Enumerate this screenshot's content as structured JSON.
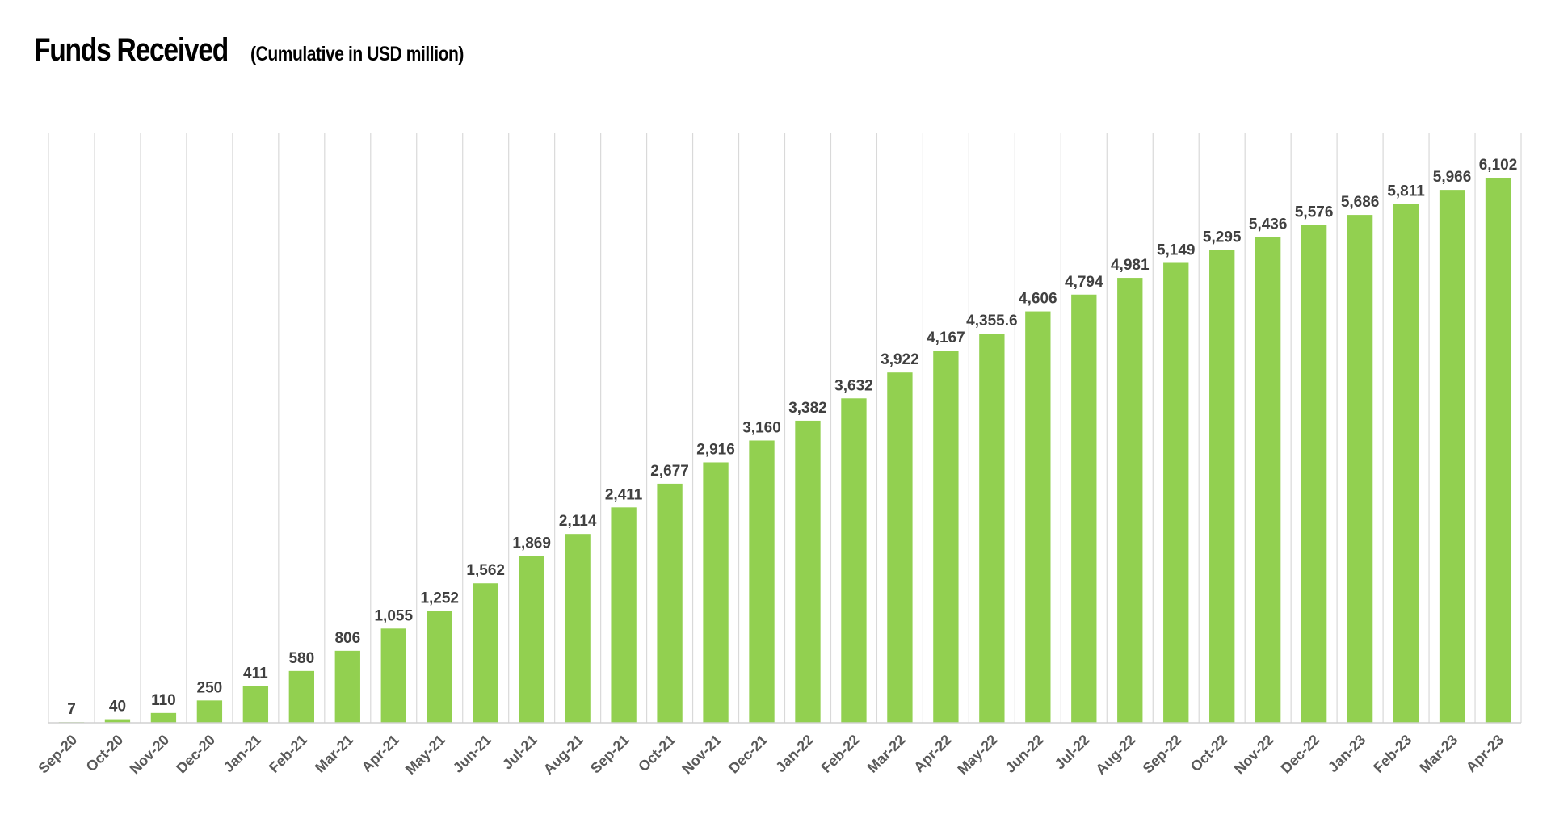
{
  "chart_data": {
    "type": "bar",
    "title": "Funds Received",
    "subtitle": "(Cumulative in USD million)",
    "xlabel": "",
    "ylabel": "",
    "ylim": [
      0,
      6600
    ],
    "grid": "vertical",
    "bar_color": "#92D050",
    "categories": [
      "Sep-20",
      "Oct-20",
      "Nov-20",
      "Dec-20",
      "Jan-21",
      "Feb-21",
      "Mar-21",
      "Apr-21",
      "May-21",
      "Jun-21",
      "Jul-21",
      "Aug-21",
      "Sep-21",
      "Oct-21",
      "Nov-21",
      "Dec-21",
      "Jan-22",
      "Feb-22",
      "Mar-22",
      "Apr-22",
      "May-22",
      "Jun-22",
      "Jul-22",
      "Aug-22",
      "Sep-22",
      "Oct-22",
      "Nov-22",
      "Dec-22",
      "Jan-23",
      "Feb-23",
      "Mar-23",
      "Apr-23"
    ],
    "values": [
      7,
      40,
      110,
      250,
      411,
      580,
      806,
      1055,
      1252,
      1562,
      1869,
      2114,
      2411,
      2677,
      2916,
      3160,
      3382,
      3632,
      3922,
      4167,
      4355.6,
      4606,
      4794,
      4981,
      5149,
      5295,
      5436,
      5576,
      5686,
      5811,
      5966,
      6102
    ],
    "data_labels": [
      "7",
      "40",
      "110",
      "250",
      "411",
      "580",
      "806",
      "1,055",
      "1,252",
      "1,562",
      "1,869",
      "2,114",
      "2,411",
      "2,677",
      "2,916",
      "3,160",
      "3,382",
      "3,632",
      "3,922",
      "4,167",
      "4,355.6",
      "4,606",
      "4,794",
      "4,981",
      "5,149",
      "5,295",
      "5,436",
      "5,576",
      "5,686",
      "5,811",
      "5,966",
      "6,102"
    ]
  }
}
